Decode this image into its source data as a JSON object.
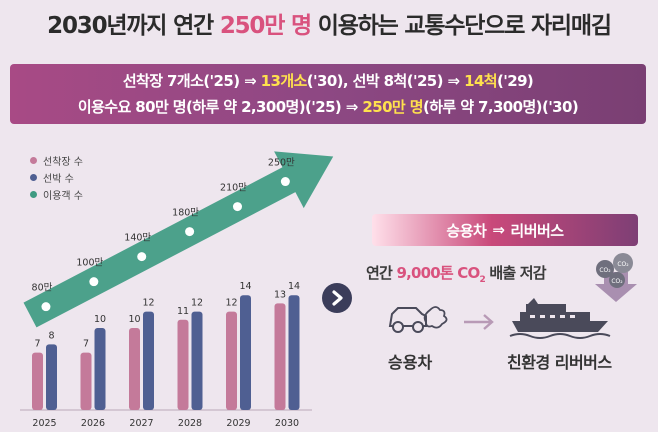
{
  "title": {
    "pre": "2030년까지 연간 ",
    "highlight": "250만 명",
    "post": " 이용하는 교통수단으로 자리매김"
  },
  "banner": {
    "line1_a": "선착장 7개소('25) ⇒ ",
    "line1_b": "13개소",
    "line1_c": "('30), 선박 8척('25) ⇒ ",
    "line1_d": "14척",
    "line1_e": "('29)",
    "line2_a": "이용수요 80만 명(하루 약 2,300명)('25) ⇒ ",
    "line2_b": "250만 명",
    "line2_c": "(하루 약 7,300명)('30)"
  },
  "legend": [
    {
      "label": "선착장 수",
      "color": "#c47a9a"
    },
    {
      "label": "선박 수",
      "color": "#4f5f92"
    },
    {
      "label": "이용객 수",
      "color": "#3e9b82"
    }
  ],
  "chart_data": {
    "type": "bar",
    "categories": [
      "2025",
      "2026",
      "2027",
      "2028",
      "2029",
      "2030"
    ],
    "series": [
      {
        "name": "선착장 수",
        "values": [
          7,
          7,
          10,
          11,
          12,
          13
        ]
      },
      {
        "name": "선박 수",
        "values": [
          8,
          10,
          12,
          12,
          14,
          14
        ]
      },
      {
        "name": "이용객 수",
        "values": [
          80,
          100,
          140,
          180,
          210,
          250
        ],
        "labels": [
          "80만",
          "100만",
          "140만",
          "180만",
          "210만",
          "250만"
        ]
      }
    ]
  },
  "right_panel": {
    "pill_left": "승용차",
    "pill_right": "리버버스",
    "emission_pre": "연간 ",
    "emission_hl": "9,000톤 CO",
    "emission_sub": "2",
    "emission_post": " 배출 저감",
    "co2_badges": [
      "CO₂",
      "CO₂",
      "CO₂"
    ],
    "car_label": "승용차",
    "ship_label": "친환경 리버버스"
  },
  "colors": {
    "dock_bar": "#c47a9a",
    "ship_bar": "#4f5f92",
    "arrow": "#3e9b82",
    "accent": "#d9527e"
  }
}
